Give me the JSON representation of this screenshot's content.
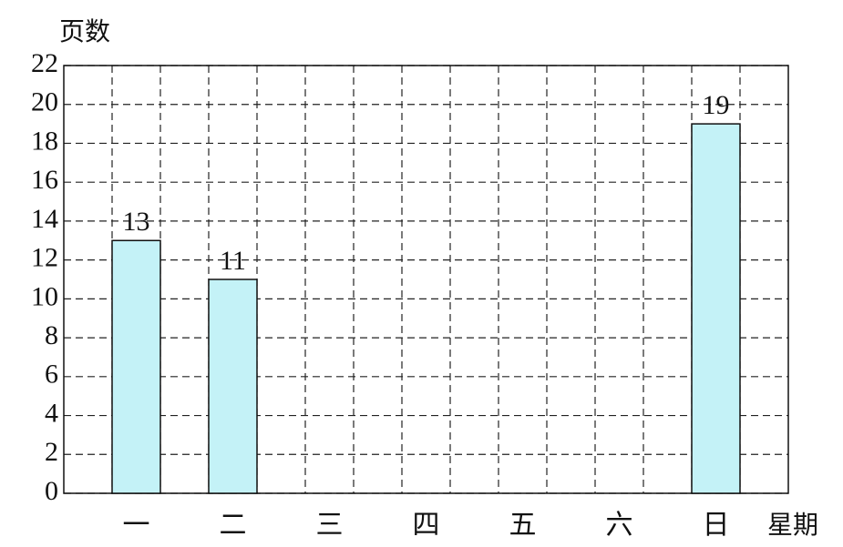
{
  "chart_data": {
    "type": "bar",
    "y_label": "页数",
    "x_label": "星期",
    "categories": [
      "一",
      "二",
      "三",
      "四",
      "五",
      "六",
      "日"
    ],
    "values": [
      13,
      11,
      null,
      null,
      null,
      null,
      19
    ],
    "color": "#c4f2f7",
    "ylim": [
      0,
      22
    ],
    "yticks": [
      0,
      2,
      4,
      6,
      8,
      10,
      12,
      14,
      16,
      18,
      20,
      22
    ],
    "grid": true
  }
}
